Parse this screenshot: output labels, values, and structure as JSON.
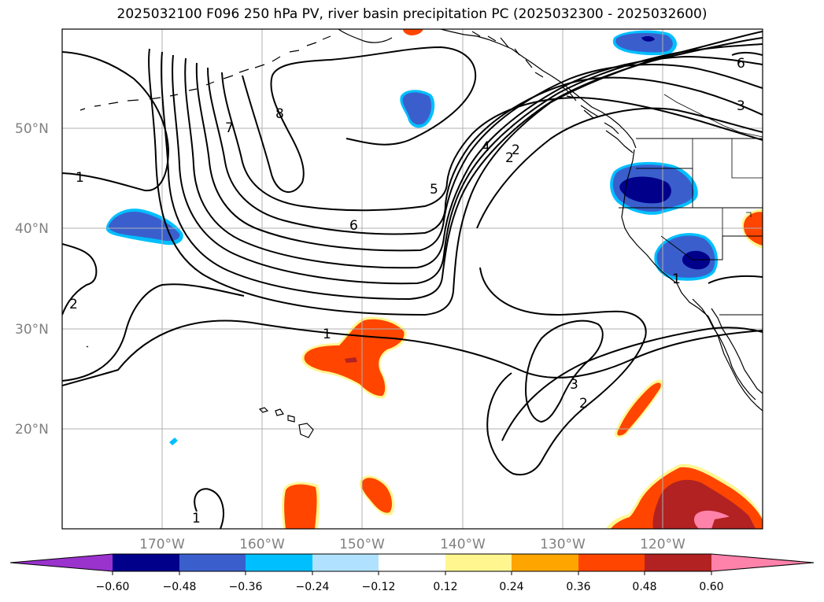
{
  "title": "2025032100 F096 250 hPa PV, river basin precipitation PC (2025032300 - 2025032600)",
  "lat_labels": [
    "50°N",
    "40°N",
    "30°N",
    "20°N"
  ],
  "lon_labels": [
    "170°W",
    "160°W",
    "150°W",
    "140°W",
    "130°W",
    "120°W"
  ],
  "colorbar": {
    "ticks": [
      "−0.60",
      "−0.48",
      "−0.36",
      "−0.24",
      "−0.12",
      "0.12",
      "0.24",
      "0.36",
      "0.48",
      "0.60"
    ],
    "colors": [
      "#9a32cd",
      "#00008b",
      "#3a5fcd",
      "#00bfff",
      "#b0e2ff",
      "#ffffff",
      "#fff68f",
      "#ffa500",
      "#ff4500",
      "#b22222",
      "#ff82ab"
    ]
  },
  "contour_labels": [
    "1",
    "2",
    "8",
    "7",
    "6",
    "5",
    "4",
    "2",
    "3",
    "6",
    "1",
    "2",
    "3",
    "2",
    "1",
    "1"
  ],
  "map": {
    "projection": "lat-lon",
    "extent": {
      "lon": [
        -180,
        -110
      ],
      "lat": [
        10,
        60
      ]
    },
    "grid": true,
    "contour_color": "#000000",
    "coastline_color": "#000000"
  }
}
